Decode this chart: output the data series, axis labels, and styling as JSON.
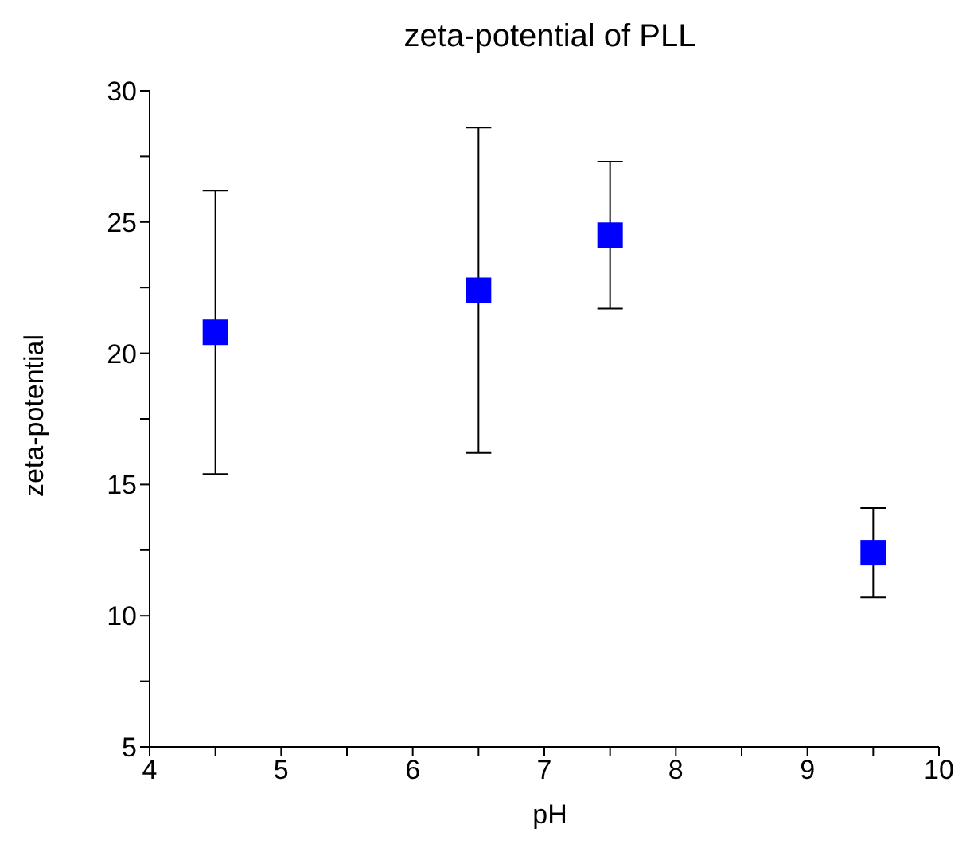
{
  "chart_data": {
    "type": "scatter",
    "title": "zeta-potential of PLL",
    "xlabel": "pH",
    "ylabel": "zeta-potential",
    "x": [
      4.5,
      6.5,
      7.5,
      9.5
    ],
    "series": [
      {
        "color": "#0000ff",
        "values": [
          20.8,
          22.4,
          24.5,
          12.4
        ],
        "errors": [
          5.4,
          6.2,
          2.8,
          1.7
        ]
      }
    ],
    "marker": "square",
    "xlim": [
      4,
      10
    ],
    "xticks": [
      4,
      {
        "value": 4.5,
        "label": null
      },
      5,
      {
        "value": 5.5,
        "label": null
      },
      6,
      {
        "value": 6.5,
        "label": null
      },
      7,
      {
        "value": 7.5,
        "label": null
      },
      8,
      {
        "value": 8.5,
        "label": null
      },
      9,
      {
        "value": 9.5,
        "label": null
      },
      10
    ],
    "ylim": [
      5,
      30
    ],
    "yticks": [
      5,
      {
        "value": 7.5,
        "label": null
      },
      10,
      {
        "value": 12.5,
        "label": null
      },
      15,
      {
        "value": 17.5,
        "label": null
      },
      20,
      {
        "value": 22.5,
        "label": null
      },
      25,
      {
        "value": 27.5,
        "label": null
      },
      30
    ]
  }
}
